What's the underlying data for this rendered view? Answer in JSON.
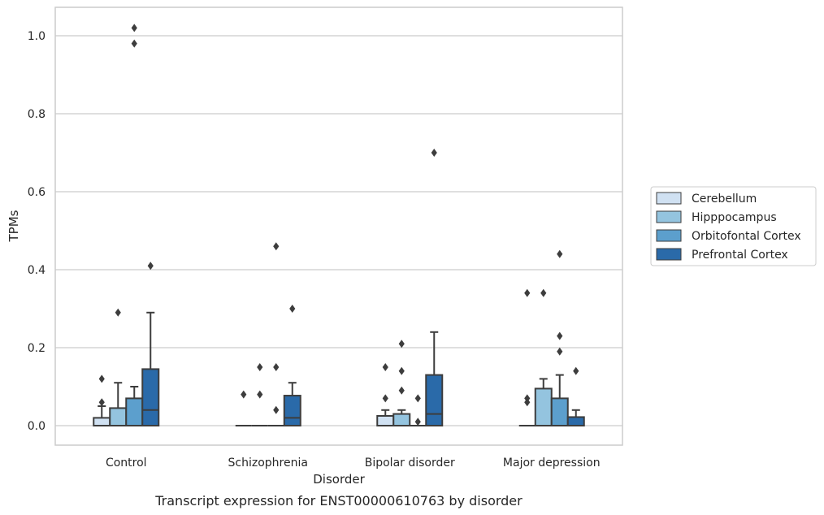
{
  "chart_data": {
    "type": "box",
    "caption": "Transcript expression for ENST00000610763 by disorder",
    "xlabel": "Disorder",
    "ylabel": "TPMs",
    "ylim": [
      -0.05,
      1.07
    ],
    "yticks": [
      0.0,
      0.2,
      0.4,
      0.6,
      0.8,
      1.0
    ],
    "ytick_labels": [
      "0.0",
      "0.2",
      "0.4",
      "0.6",
      "0.8",
      "1.0"
    ],
    "grid": "horizontal",
    "legend_position": "right",
    "categories": [
      "Control",
      "Schizophrenia",
      "Bipolar disorder",
      "Major depression"
    ],
    "series": [
      {
        "name": "Cerebellum",
        "color": "#d0e1f2",
        "boxes": [
          {
            "q1": 0.0,
            "median": 0.0,
            "q3": 0.02,
            "whisker_low": 0.0,
            "whisker_high": 0.05,
            "outliers": [
              0.06,
              0.12
            ]
          },
          {
            "q1": 0.0,
            "median": 0.0,
            "q3": 0.0,
            "whisker_low": 0.0,
            "whisker_high": 0.0,
            "outliers": [
              0.08
            ]
          },
          {
            "q1": 0.0,
            "median": 0.0,
            "q3": 0.025,
            "whisker_low": 0.0,
            "whisker_high": 0.04,
            "outliers": [
              0.07,
              0.15
            ]
          },
          {
            "q1": 0.0,
            "median": 0.0,
            "q3": 0.0,
            "whisker_low": 0.0,
            "whisker_high": 0.0,
            "outliers": [
              0.06,
              0.07,
              0.34
            ]
          }
        ]
      },
      {
        "name": "Hipppocampus",
        "color": "#94c4df",
        "boxes": [
          {
            "q1": 0.0,
            "median": 0.0,
            "q3": 0.045,
            "whisker_low": 0.0,
            "whisker_high": 0.11,
            "outliers": [
              0.29
            ]
          },
          {
            "q1": 0.0,
            "median": 0.0,
            "q3": 0.0,
            "whisker_low": 0.0,
            "whisker_high": 0.0,
            "outliers": [
              0.08,
              0.15
            ]
          },
          {
            "q1": 0.0,
            "median": 0.0,
            "q3": 0.03,
            "whisker_low": 0.0,
            "whisker_high": 0.04,
            "outliers": [
              0.09,
              0.14,
              0.21
            ]
          },
          {
            "q1": 0.0,
            "median": 0.0,
            "q3": 0.095,
            "whisker_low": 0.0,
            "whisker_high": 0.12,
            "outliers": [
              0.34
            ]
          }
        ]
      },
      {
        "name": "Orbitofontal Cortex",
        "color": "#5c9fcd",
        "boxes": [
          {
            "q1": 0.0,
            "median": 0.0,
            "q3": 0.07,
            "whisker_low": 0.0,
            "whisker_high": 0.1,
            "outliers": [
              0.98,
              1.02
            ]
          },
          {
            "q1": 0.0,
            "median": 0.0,
            "q3": 0.0,
            "whisker_low": 0.0,
            "whisker_high": 0.0,
            "outliers": [
              0.04,
              0.15,
              0.46
            ]
          },
          {
            "q1": 0.0,
            "median": 0.0,
            "q3": 0.0,
            "whisker_low": 0.0,
            "whisker_high": 0.0,
            "outliers": [
              0.01,
              0.07
            ]
          },
          {
            "q1": 0.0,
            "median": 0.0,
            "q3": 0.07,
            "whisker_low": 0.0,
            "whisker_high": 0.13,
            "outliers": [
              0.19,
              0.23,
              0.44
            ]
          }
        ]
      },
      {
        "name": "Prefrontal Cortex",
        "color": "#2a6aa9",
        "boxes": [
          {
            "q1": 0.0,
            "median": 0.04,
            "q3": 0.145,
            "whisker_low": 0.0,
            "whisker_high": 0.29,
            "outliers": [
              0.41
            ]
          },
          {
            "q1": 0.0,
            "median": 0.02,
            "q3": 0.077,
            "whisker_low": 0.0,
            "whisker_high": 0.11,
            "outliers": [
              0.3
            ]
          },
          {
            "q1": 0.0,
            "median": 0.03,
            "q3": 0.13,
            "whisker_low": 0.0,
            "whisker_high": 0.24,
            "outliers": [
              0.7
            ]
          },
          {
            "q1": 0.0,
            "median": 0.0,
            "q3": 0.022,
            "whisker_low": 0.0,
            "whisker_high": 0.04,
            "outliers": [
              0.14
            ]
          }
        ]
      }
    ]
  }
}
